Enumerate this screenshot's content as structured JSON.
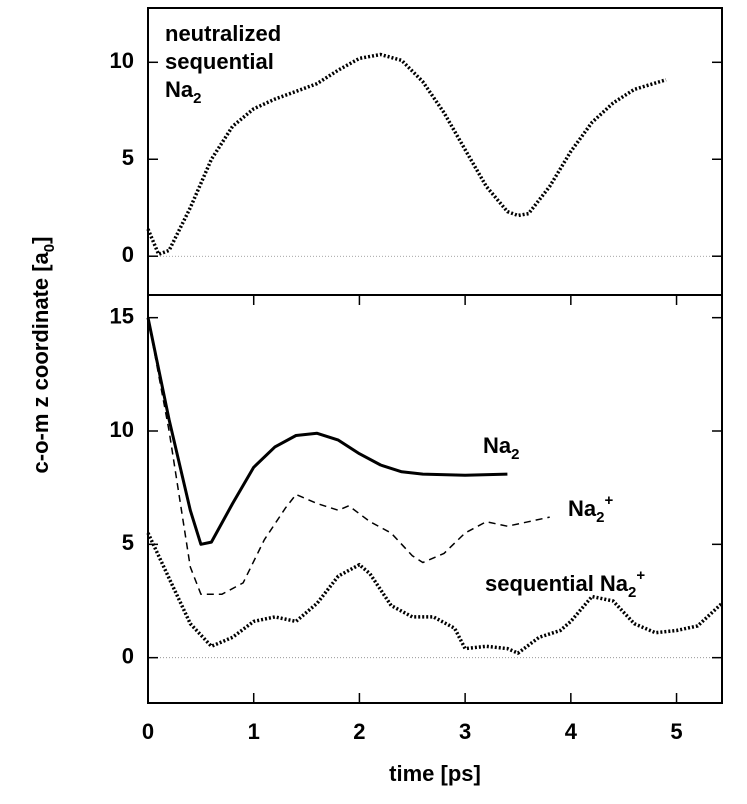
{
  "chart_data": [
    {
      "type": "line",
      "annotation": [
        [
          {
            "text": "neutralized"
          }
        ],
        [
          {
            "text": "sequential"
          }
        ],
        [
          {
            "text": "Na"
          },
          {
            "text": "2",
            "shift": "sub"
          }
        ]
      ],
      "xlim": [
        0,
        5.43
      ],
      "ylim": [
        -2,
        12.8
      ],
      "yticks": [
        0,
        5,
        10
      ],
      "zero_line": true,
      "series": [
        {
          "color": "#000000",
          "dash": "dotted",
          "x": [
            0,
            0.1,
            0.2,
            0.4,
            0.6,
            0.8,
            1.0,
            1.2,
            1.4,
            1.6,
            1.8,
            2.0,
            2.2,
            2.4,
            2.6,
            2.8,
            3.0,
            3.2,
            3.4,
            3.5,
            3.6,
            3.8,
            4.0,
            4.2,
            4.4,
            4.6,
            4.9
          ],
          "values": [
            1.4,
            0.1,
            0.3,
            2.5,
            5,
            6.7,
            7.6,
            8.1,
            8.5,
            8.9,
            9.6,
            10.2,
            10.4,
            10.1,
            9,
            7.4,
            5.5,
            3.6,
            2.3,
            2.1,
            2.2,
            3.6,
            5.4,
            6.9,
            7.9,
            8.6,
            9.1
          ]
        }
      ]
    },
    {
      "type": "line",
      "xlabel": "time [ps]",
      "ylabel": [
        {
          "text": "c-o-m z coordinate [a"
        },
        {
          "text": "0",
          "shift": "sub"
        },
        {
          "text": "]"
        }
      ],
      "xlim": [
        0,
        5.43
      ],
      "xticks": [
        0,
        1,
        2,
        3,
        4,
        5
      ],
      "ylim": [
        -2,
        16
      ],
      "yticks": [
        0,
        5,
        10,
        15
      ],
      "zero_line": true,
      "series": [
        {
          "label": [
            {
              "text": "Na"
            },
            {
              "text": "2",
              "shift": "sub"
            }
          ],
          "color": "#000000",
          "dash": "solid",
          "x": [
            0,
            0.2,
            0.4,
            0.5,
            0.6,
            0.8,
            1.0,
            1.2,
            1.4,
            1.6,
            1.8,
            2.0,
            2.2,
            2.4,
            2.6,
            3.0,
            3.4
          ],
          "values": [
            15,
            10.5,
            6.5,
            5,
            5.1,
            6.8,
            8.4,
            9.3,
            9.8,
            9.9,
            9.6,
            9,
            8.5,
            8.2,
            8.1,
            8.05,
            8.1
          ]
        },
        {
          "label": [
            {
              "text": "Na"
            },
            {
              "text": "2",
              "shift": "sub"
            },
            {
              "text": "+",
              "shift": "super"
            }
          ],
          "color": "#000000",
          "dash": "dashed",
          "x": [
            0,
            0.2,
            0.4,
            0.5,
            0.7,
            0.9,
            1.1,
            1.3,
            1.4,
            1.6,
            1.8,
            1.9,
            2.1,
            2.3,
            2.5,
            2.6,
            2.8,
            3.0,
            3.2,
            3.4,
            3.6,
            3.8
          ],
          "values": [
            15,
            10,
            4,
            2.8,
            2.8,
            3.3,
            5.2,
            6.6,
            7.2,
            6.8,
            6.5,
            6.7,
            6,
            5.5,
            4.5,
            4.2,
            4.6,
            5.5,
            6,
            5.8,
            6,
            6.2
          ]
        },
        {
          "label": [
            {
              "text": "sequential Na"
            },
            {
              "text": "2",
              "shift": "sub"
            },
            {
              "text": "+",
              "shift": "super"
            }
          ],
          "color": "#000000",
          "dash": "dotted",
          "x": [
            0,
            0.2,
            0.4,
            0.6,
            0.8,
            1.0,
            1.2,
            1.4,
            1.6,
            1.8,
            2.0,
            2.1,
            2.3,
            2.5,
            2.7,
            2.9,
            3.0,
            3.2,
            3.4,
            3.5,
            3.7,
            3.9,
            4.0,
            4.2,
            4.4,
            4.6,
            4.8,
            5.0,
            5.2,
            5.43
          ],
          "values": [
            5.5,
            3.5,
            1.5,
            0.5,
            0.9,
            1.6,
            1.8,
            1.6,
            2.4,
            3.6,
            4.1,
            3.7,
            2.3,
            1.8,
            1.8,
            1.3,
            0.4,
            0.5,
            0.4,
            0.2,
            0.9,
            1.2,
            1.6,
            2.7,
            2.5,
            1.5,
            1.1,
            1.2,
            1.4,
            2.4
          ]
        }
      ]
    }
  ]
}
